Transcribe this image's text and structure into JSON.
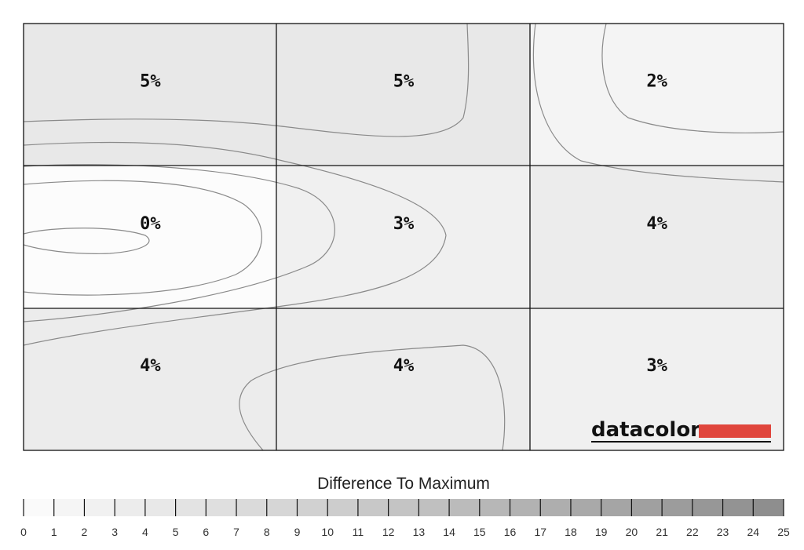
{
  "chart_data": {
    "type": "heatmap",
    "rows": 3,
    "cols": 3,
    "values": [
      [
        5,
        5,
        2
      ],
      [
        0,
        3,
        4
      ],
      [
        4,
        4,
        3
      ]
    ],
    "cell_labels": [
      [
        "5%",
        "5%",
        "2%"
      ],
      [
        "0%",
        "3%",
        "4%"
      ],
      [
        "4%",
        "4%",
        "3%"
      ]
    ],
    "legend_title": "Difference To Maximum",
    "scale_min": 0,
    "scale_max": 25,
    "scale_ticks": [
      "0",
      "1",
      "2",
      "3",
      "4",
      "5",
      "6",
      "7",
      "8",
      "9",
      "10",
      "11",
      "12",
      "13",
      "14",
      "15",
      "16",
      "17",
      "18",
      "19",
      "20",
      "21",
      "22",
      "23",
      "24",
      "25"
    ],
    "logo_text": "datacolor",
    "colors": {
      "brand_red": "#e0463c",
      "grid": "#111111",
      "contour": "#8a8a8a"
    }
  }
}
